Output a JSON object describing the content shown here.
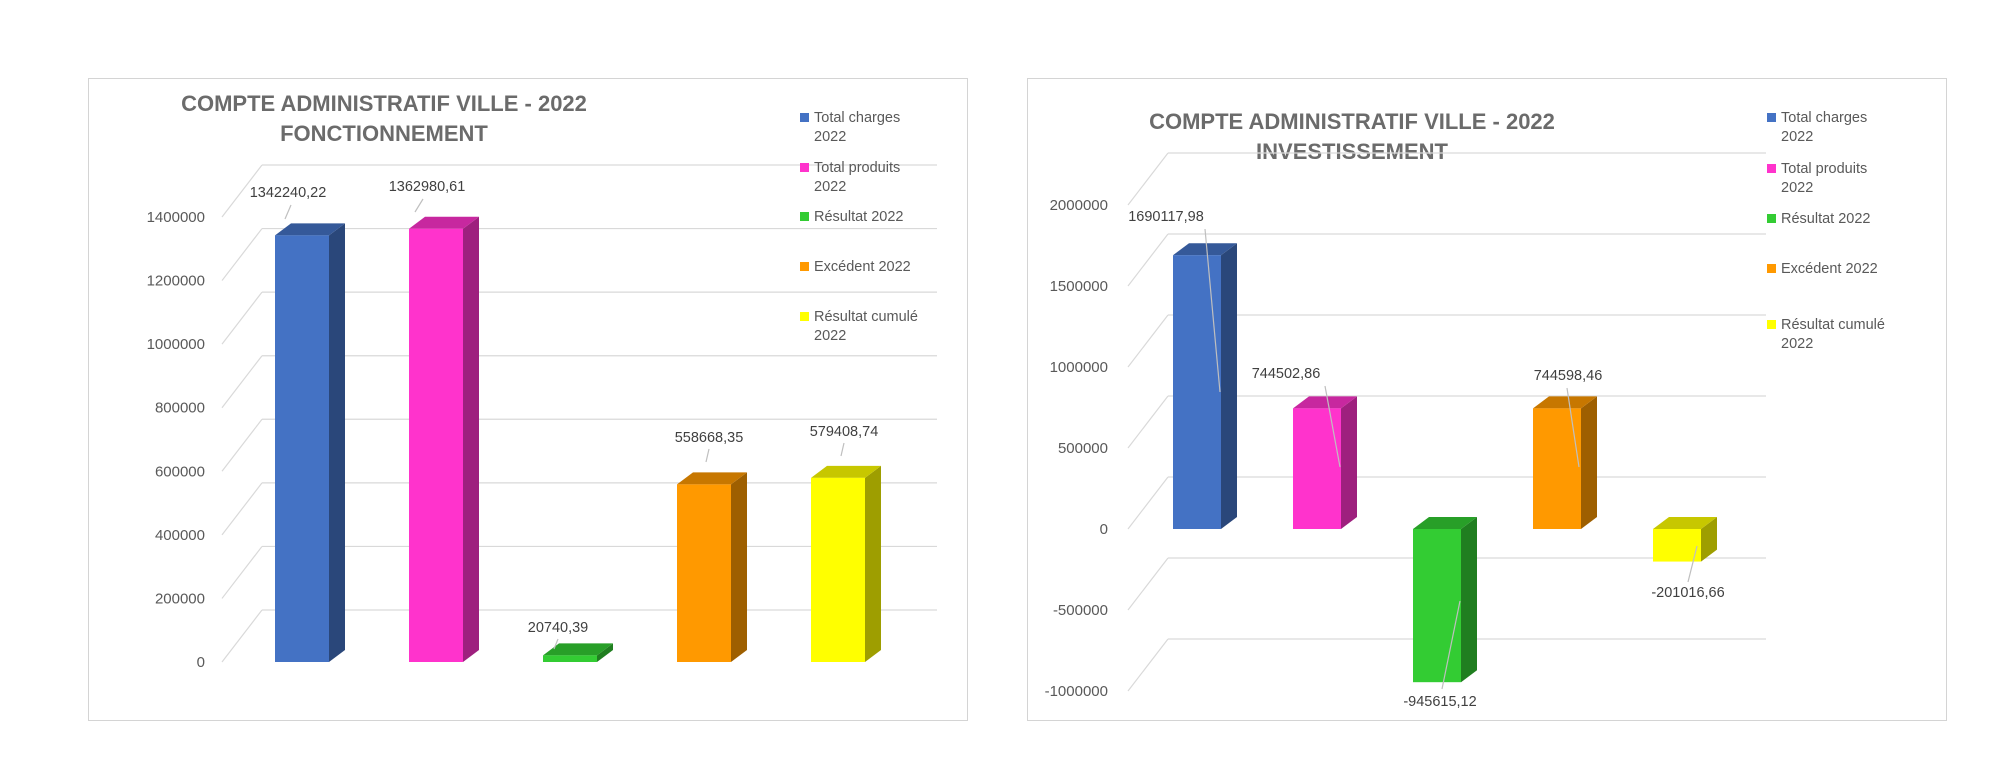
{
  "chart_data": [
    {
      "type": "bar",
      "title": [
        "COMPTE ADMINISTRATIF VILLE - 2022",
        "FONCTIONNEMENT"
      ],
      "categories": [
        "Total charges 2022",
        "Total produits 2022",
        "Résultat 2022",
        "Excédent 2022",
        "Résultat cumulé 2022"
      ],
      "values": [
        1342240.22,
        1362980.61,
        20740.39,
        558668.35,
        579408.74
      ],
      "value_labels": [
        "1342240,22",
        "1362980,61",
        "20740,39",
        "558668,35",
        "579408,74"
      ],
      "colors": [
        "#4472c4",
        "#ff33cc",
        "#33cc33",
        "#ff9900",
        "#ffff00"
      ],
      "yticks": [
        0,
        200000,
        400000,
        600000,
        800000,
        1000000,
        1200000,
        1400000
      ],
      "ylim": [
        0,
        1400000
      ],
      "legend": [
        {
          "lines": [
            "Total charges",
            "2022"
          ],
          "color": "#4472c4"
        },
        {
          "lines": [
            "Total produits",
            "2022"
          ],
          "color": "#ff33cc"
        },
        {
          "lines": [
            "Résultat 2022"
          ],
          "color": "#33cc33"
        },
        {
          "lines": [
            "Excédent 2022"
          ],
          "color": "#ff9900"
        },
        {
          "lines": [
            "Résultat cumulé",
            "2022"
          ],
          "color": "#ffff00"
        }
      ],
      "legend_position": "right",
      "grid": true
    },
    {
      "type": "bar",
      "title": [
        "COMPTE ADMINISTRATIF VILLE - 2022",
        "INVESTISSEMENT"
      ],
      "categories": [
        "Total charges 2022",
        "Total produits 2022",
        "Résultat 2022",
        "Excédent 2022",
        "Résultat cumulé 2022"
      ],
      "values": [
        1690117.98,
        744502.86,
        -945615.12,
        744598.46,
        -201016.66
      ],
      "value_labels": [
        "1690117,98",
        "744502,86",
        "-945615,12",
        "744598,46",
        "-201016,66"
      ],
      "colors": [
        "#4472c4",
        "#ff33cc",
        "#33cc33",
        "#ff9900",
        "#ffff00"
      ],
      "yticks": [
        -1000000,
        -500000,
        0,
        500000,
        1000000,
        1500000,
        2000000
      ],
      "ylim": [
        -1000000,
        2000000
      ],
      "legend": [
        {
          "lines": [
            "Total charges",
            "2022"
          ],
          "color": "#4472c4"
        },
        {
          "lines": [
            "Total produits",
            "2022"
          ],
          "color": "#ff33cc"
        },
        {
          "lines": [
            "Résultat 2022"
          ],
          "color": "#33cc33"
        },
        {
          "lines": [
            "Excédent 2022"
          ],
          "color": "#ff9900"
        },
        {
          "lines": [
            "Résultat cumulé",
            "2022"
          ],
          "color": "#ffff00"
        }
      ],
      "legend_position": "right",
      "grid": true
    }
  ]
}
